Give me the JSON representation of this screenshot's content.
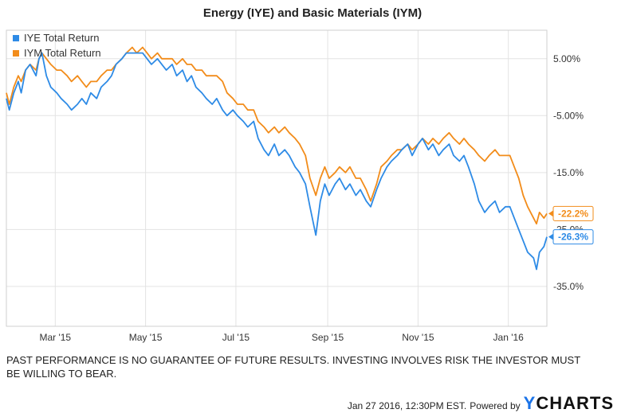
{
  "chart_data": {
    "type": "line",
    "title": "Energy (IYE) and Basic Materials (IYM)",
    "xlabel": "",
    "ylabel": "",
    "x_domain": [
      "2015-01-27",
      "2016-01-27"
    ],
    "ylim": [
      -42,
      10
    ],
    "y_ticks": [
      5,
      -5,
      -15,
      -25,
      -35
    ],
    "y_tick_labels": [
      "5.00%",
      "-5.00%",
      "-15.0%",
      "-25.0%",
      "-35.0%"
    ],
    "x_ticks": [
      {
        "date": "2015-03-01",
        "label": "Mar '15"
      },
      {
        "date": "2015-05-01",
        "label": "May '15"
      },
      {
        "date": "2015-07-01",
        "label": "Jul '15"
      },
      {
        "date": "2015-09-01",
        "label": "Sep '15"
      },
      {
        "date": "2015-11-01",
        "label": "Nov '15"
      },
      {
        "date": "2016-01-01",
        "label": "Jan '16"
      }
    ],
    "series": [
      {
        "name": "IYE Total Return",
        "color": "#2e8be6",
        "end_label": "-26.3%",
        "points": [
          [
            "2015-01-27",
            -2.0
          ],
          [
            "2015-01-29",
            -4.0
          ],
          [
            "2015-02-01",
            -1.0
          ],
          [
            "2015-02-04",
            1.0
          ],
          [
            "2015-02-06",
            -1.0
          ],
          [
            "2015-02-09",
            3.0
          ],
          [
            "2015-02-12",
            4.0
          ],
          [
            "2015-02-16",
            2.0
          ],
          [
            "2015-02-18",
            5.0
          ],
          [
            "2015-02-20",
            6.0
          ],
          [
            "2015-02-23",
            2.0
          ],
          [
            "2015-02-26",
            0.0
          ],
          [
            "2015-03-02",
            -1.0
          ],
          [
            "2015-03-05",
            -2.0
          ],
          [
            "2015-03-09",
            -3.0
          ],
          [
            "2015-03-12",
            -4.0
          ],
          [
            "2015-03-16",
            -3.0
          ],
          [
            "2015-03-19",
            -2.0
          ],
          [
            "2015-03-22",
            -3.0
          ],
          [
            "2015-03-25",
            -1.0
          ],
          [
            "2015-03-29",
            -2.0
          ],
          [
            "2015-04-01",
            0.0
          ],
          [
            "2015-04-05",
            1.0
          ],
          [
            "2015-04-08",
            2.0
          ],
          [
            "2015-04-11",
            4.0
          ],
          [
            "2015-04-15",
            5.0
          ],
          [
            "2015-04-18",
            6.0
          ],
          [
            "2015-04-22",
            6.0
          ],
          [
            "2015-04-25",
            6.0
          ],
          [
            "2015-04-29",
            6.0
          ],
          [
            "2015-05-02",
            5.0
          ],
          [
            "2015-05-05",
            4.0
          ],
          [
            "2015-05-09",
            5.0
          ],
          [
            "2015-05-12",
            4.0
          ],
          [
            "2015-05-15",
            3.0
          ],
          [
            "2015-05-19",
            4.0
          ],
          [
            "2015-05-22",
            2.0
          ],
          [
            "2015-05-26",
            3.0
          ],
          [
            "2015-05-29",
            1.0
          ],
          [
            "2015-06-01",
            2.0
          ],
          [
            "2015-06-04",
            0.0
          ],
          [
            "2015-06-08",
            -1.0
          ],
          [
            "2015-06-11",
            -2.0
          ],
          [
            "2015-06-15",
            -3.0
          ],
          [
            "2015-06-18",
            -2.0
          ],
          [
            "2015-06-22",
            -4.0
          ],
          [
            "2015-06-25",
            -5.0
          ],
          [
            "2015-06-29",
            -4.0
          ],
          [
            "2015-07-02",
            -5.0
          ],
          [
            "2015-07-06",
            -6.0
          ],
          [
            "2015-07-09",
            -7.0
          ],
          [
            "2015-07-13",
            -6.0
          ],
          [
            "2015-07-16",
            -9.0
          ],
          [
            "2015-07-20",
            -11.0
          ],
          [
            "2015-07-23",
            -12.0
          ],
          [
            "2015-07-27",
            -10.0
          ],
          [
            "2015-07-30",
            -12.0
          ],
          [
            "2015-08-03",
            -11.0
          ],
          [
            "2015-08-06",
            -12.0
          ],
          [
            "2015-08-10",
            -14.0
          ],
          [
            "2015-08-13",
            -15.0
          ],
          [
            "2015-08-17",
            -17.0
          ],
          [
            "2015-08-20",
            -21.0
          ],
          [
            "2015-08-24",
            -26.0
          ],
          [
            "2015-08-27",
            -20.0
          ],
          [
            "2015-08-30",
            -17.0
          ],
          [
            "2015-09-02",
            -19.0
          ],
          [
            "2015-09-06",
            -17.0
          ],
          [
            "2015-09-09",
            -16.0
          ],
          [
            "2015-09-13",
            -18.0
          ],
          [
            "2015-09-16",
            -17.0
          ],
          [
            "2015-09-20",
            -19.0
          ],
          [
            "2015-09-23",
            -18.0
          ],
          [
            "2015-09-27",
            -20.0
          ],
          [
            "2015-09-30",
            -21.0
          ],
          [
            "2015-10-04",
            -18.0
          ],
          [
            "2015-10-07",
            -16.0
          ],
          [
            "2015-10-11",
            -14.0
          ],
          [
            "2015-10-14",
            -13.0
          ],
          [
            "2015-10-18",
            -12.0
          ],
          [
            "2015-10-21",
            -11.0
          ],
          [
            "2015-10-25",
            -10.0
          ],
          [
            "2015-10-28",
            -12.0
          ],
          [
            "2015-11-01",
            -10.0
          ],
          [
            "2015-11-04",
            -9.0
          ],
          [
            "2015-11-08",
            -11.0
          ],
          [
            "2015-11-11",
            -10.0
          ],
          [
            "2015-11-15",
            -12.0
          ],
          [
            "2015-11-18",
            -11.0
          ],
          [
            "2015-11-22",
            -10.0
          ],
          [
            "2015-11-25",
            -12.0
          ],
          [
            "2015-11-29",
            -13.0
          ],
          [
            "2015-12-02",
            -12.0
          ],
          [
            "2015-12-05",
            -14.0
          ],
          [
            "2015-12-09",
            -17.0
          ],
          [
            "2015-12-12",
            -20.0
          ],
          [
            "2015-12-16",
            -22.0
          ],
          [
            "2015-12-19",
            -21.0
          ],
          [
            "2015-12-23",
            -20.0
          ],
          [
            "2015-12-26",
            -22.0
          ],
          [
            "2015-12-30",
            -21.0
          ],
          [
            "2016-01-02",
            -21.0
          ],
          [
            "2016-01-05",
            -23.0
          ],
          [
            "2016-01-08",
            -25.0
          ],
          [
            "2016-01-11",
            -27.0
          ],
          [
            "2016-01-14",
            -29.0
          ],
          [
            "2016-01-18",
            -30.0
          ],
          [
            "2016-01-20",
            -32.0
          ],
          [
            "2016-01-22",
            -29.0
          ],
          [
            "2016-01-25",
            -28.0
          ],
          [
            "2016-01-27",
            -26.3
          ]
        ]
      },
      {
        "name": "IYM Total Return",
        "color": "#f28c1a",
        "end_label": "-22.2%",
        "points": [
          [
            "2015-01-27",
            -1.0
          ],
          [
            "2015-01-29",
            -3.0
          ],
          [
            "2015-02-01",
            0.0
          ],
          [
            "2015-02-04",
            2.0
          ],
          [
            "2015-02-06",
            1.0
          ],
          [
            "2015-02-09",
            3.0
          ],
          [
            "2015-02-12",
            4.0
          ],
          [
            "2015-02-16",
            3.0
          ],
          [
            "2015-02-18",
            5.0
          ],
          [
            "2015-02-20",
            6.0
          ],
          [
            "2015-02-23",
            5.0
          ],
          [
            "2015-02-26",
            4.0
          ],
          [
            "2015-03-02",
            3.0
          ],
          [
            "2015-03-05",
            3.0
          ],
          [
            "2015-03-09",
            2.0
          ],
          [
            "2015-03-12",
            1.0
          ],
          [
            "2015-03-16",
            2.0
          ],
          [
            "2015-03-19",
            1.0
          ],
          [
            "2015-03-22",
            0.0
          ],
          [
            "2015-03-25",
            1.0
          ],
          [
            "2015-03-29",
            1.0
          ],
          [
            "2015-04-01",
            2.0
          ],
          [
            "2015-04-05",
            3.0
          ],
          [
            "2015-04-08",
            3.0
          ],
          [
            "2015-04-11",
            4.0
          ],
          [
            "2015-04-15",
            5.0
          ],
          [
            "2015-04-18",
            6.0
          ],
          [
            "2015-04-22",
            7.0
          ],
          [
            "2015-04-25",
            6.0
          ],
          [
            "2015-04-29",
            7.0
          ],
          [
            "2015-05-02",
            6.0
          ],
          [
            "2015-05-05",
            5.0
          ],
          [
            "2015-05-09",
            6.0
          ],
          [
            "2015-05-12",
            5.0
          ],
          [
            "2015-05-15",
            5.0
          ],
          [
            "2015-05-19",
            5.0
          ],
          [
            "2015-05-22",
            4.0
          ],
          [
            "2015-05-26",
            5.0
          ],
          [
            "2015-05-29",
            4.0
          ],
          [
            "2015-06-01",
            4.0
          ],
          [
            "2015-06-04",
            3.0
          ],
          [
            "2015-06-08",
            3.0
          ],
          [
            "2015-06-11",
            2.0
          ],
          [
            "2015-06-15",
            2.0
          ],
          [
            "2015-06-18",
            2.0
          ],
          [
            "2015-06-22",
            1.0
          ],
          [
            "2015-06-25",
            -1.0
          ],
          [
            "2015-06-29",
            -2.0
          ],
          [
            "2015-07-02",
            -3.0
          ],
          [
            "2015-07-06",
            -3.0
          ],
          [
            "2015-07-09",
            -4.0
          ],
          [
            "2015-07-13",
            -4.0
          ],
          [
            "2015-07-16",
            -6.0
          ],
          [
            "2015-07-20",
            -7.0
          ],
          [
            "2015-07-23",
            -8.0
          ],
          [
            "2015-07-27",
            -7.0
          ],
          [
            "2015-07-30",
            -8.0
          ],
          [
            "2015-08-03",
            -7.0
          ],
          [
            "2015-08-06",
            -8.0
          ],
          [
            "2015-08-10",
            -9.0
          ],
          [
            "2015-08-13",
            -10.0
          ],
          [
            "2015-08-17",
            -12.0
          ],
          [
            "2015-08-20",
            -16.0
          ],
          [
            "2015-08-24",
            -19.0
          ],
          [
            "2015-08-27",
            -16.0
          ],
          [
            "2015-08-30",
            -14.0
          ],
          [
            "2015-09-02",
            -16.0
          ],
          [
            "2015-09-06",
            -15.0
          ],
          [
            "2015-09-09",
            -14.0
          ],
          [
            "2015-09-13",
            -15.0
          ],
          [
            "2015-09-16",
            -14.0
          ],
          [
            "2015-09-20",
            -16.0
          ],
          [
            "2015-09-23",
            -16.0
          ],
          [
            "2015-09-27",
            -18.0
          ],
          [
            "2015-09-30",
            -20.0
          ],
          [
            "2015-10-04",
            -17.0
          ],
          [
            "2015-10-07",
            -14.0
          ],
          [
            "2015-10-11",
            -13.0
          ],
          [
            "2015-10-14",
            -12.0
          ],
          [
            "2015-10-18",
            -11.0
          ],
          [
            "2015-10-21",
            -11.0
          ],
          [
            "2015-10-25",
            -10.0
          ],
          [
            "2015-10-28",
            -11.0
          ],
          [
            "2015-11-01",
            -10.0
          ],
          [
            "2015-11-04",
            -9.0
          ],
          [
            "2015-11-08",
            -10.0
          ],
          [
            "2015-11-11",
            -9.0
          ],
          [
            "2015-11-15",
            -10.0
          ],
          [
            "2015-11-18",
            -9.0
          ],
          [
            "2015-11-22",
            -8.0
          ],
          [
            "2015-11-25",
            -9.0
          ],
          [
            "2015-11-29",
            -10.0
          ],
          [
            "2015-12-02",
            -9.0
          ],
          [
            "2015-12-05",
            -10.0
          ],
          [
            "2015-12-09",
            -11.0
          ],
          [
            "2015-12-12",
            -12.0
          ],
          [
            "2015-12-16",
            -13.0
          ],
          [
            "2015-12-19",
            -12.0
          ],
          [
            "2015-12-23",
            -11.0
          ],
          [
            "2015-12-26",
            -12.0
          ],
          [
            "2015-12-30",
            -12.0
          ],
          [
            "2016-01-02",
            -12.0
          ],
          [
            "2016-01-05",
            -14.0
          ],
          [
            "2016-01-08",
            -16.0
          ],
          [
            "2016-01-11",
            -19.0
          ],
          [
            "2016-01-14",
            -21.0
          ],
          [
            "2016-01-18",
            -23.0
          ],
          [
            "2016-01-20",
            -24.0
          ],
          [
            "2016-01-22",
            -22.0
          ],
          [
            "2016-01-25",
            -23.0
          ],
          [
            "2016-01-27",
            -22.2
          ]
        ]
      }
    ],
    "legend_position": "top-left"
  },
  "disclaimer": "PAST PERFORMANCE IS NO GUARANTEE OF FUTURE RESULTS. INVESTING INVOLVES RISK THE INVESTOR MUST BE WILLING TO BEAR.",
  "footer": {
    "timestamp": "Jan 27 2016, 12:30PM EST.",
    "powered_by": "Powered by",
    "brand_y": "Y",
    "brand_rest": "CHARTS"
  }
}
